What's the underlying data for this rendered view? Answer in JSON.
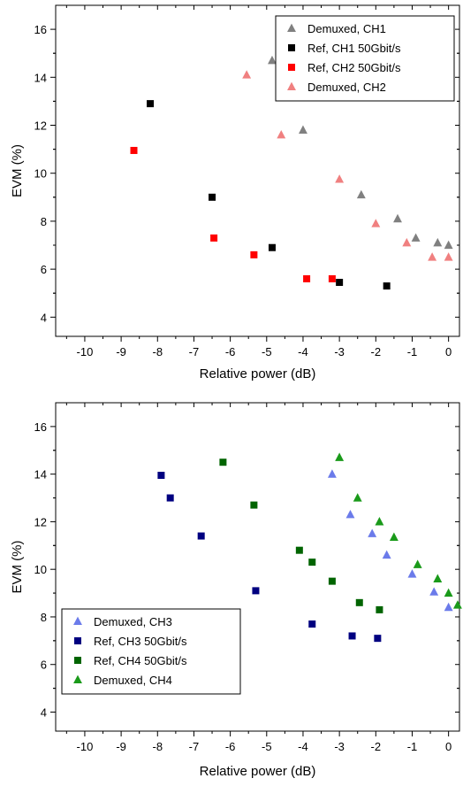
{
  "chart_data": [
    {
      "type": "scatter",
      "xlabel": "Relative power (dB)",
      "ylabel": "EVM (%)",
      "xlim": [
        -10.8,
        0.3
      ],
      "ylim": [
        3.2,
        17
      ],
      "xticks": [
        "-10",
        "-9",
        "-8",
        "-7",
        "-6",
        "-5",
        "-4",
        "-3",
        "-2",
        "-1",
        "0"
      ],
      "yticks": [
        "4",
        "6",
        "8",
        "10",
        "12",
        "14",
        "16"
      ],
      "legend_position": "top-right",
      "series": [
        {
          "name": "Demuxed, CH1",
          "marker": "triangle",
          "color": "#808080",
          "points": [
            [
              -4.85,
              14.7
            ],
            [
              -4.0,
              11.8
            ],
            [
              -2.4,
              9.1
            ],
            [
              -1.4,
              8.1
            ],
            [
              -0.9,
              7.3
            ],
            [
              -0.3,
              7.1
            ],
            [
              0.0,
              7.0
            ]
          ]
        },
        {
          "name": "Ref, CH1 50Gbit/s",
          "marker": "square",
          "color": "#000000",
          "points": [
            [
              -8.2,
              12.9
            ],
            [
              -6.5,
              9.0
            ],
            [
              -4.85,
              6.9
            ],
            [
              -3.0,
              5.45
            ],
            [
              -1.7,
              5.3
            ]
          ]
        },
        {
          "name": "Ref, CH2 50Gbit/s",
          "marker": "square",
          "color": "#ff0000",
          "points": [
            [
              -8.65,
              10.95
            ],
            [
              -6.45,
              7.3
            ],
            [
              -5.35,
              6.6
            ],
            [
              -3.9,
              5.6
            ],
            [
              -3.2,
              5.6
            ]
          ]
        },
        {
          "name": "Demuxed, CH2",
          "marker": "triangle",
          "color": "#f08080",
          "points": [
            [
              -5.55,
              14.1
            ],
            [
              -4.6,
              11.6
            ],
            [
              -3.0,
              9.75
            ],
            [
              -2.0,
              7.9
            ],
            [
              -1.15,
              7.1
            ],
            [
              -0.45,
              6.5
            ],
            [
              0.0,
              6.5
            ]
          ]
        }
      ]
    },
    {
      "type": "scatter",
      "xlabel": "Relative power (dB)",
      "ylabel": "EVM (%)",
      "xlim": [
        -10.8,
        0.3
      ],
      "ylim": [
        3.2,
        17
      ],
      "xticks": [
        "-10",
        "-9",
        "-8",
        "-7",
        "-6",
        "-5",
        "-4",
        "-3",
        "-2",
        "-1",
        "0"
      ],
      "yticks": [
        "4",
        "6",
        "8",
        "10",
        "12",
        "14",
        "16"
      ],
      "legend_position": "bottom-left",
      "series": [
        {
          "name": "Demuxed, CH3",
          "marker": "triangle",
          "color": "#6b7bea",
          "points": [
            [
              -3.2,
              14.0
            ],
            [
              -2.7,
              12.3
            ],
            [
              -2.1,
              11.5
            ],
            [
              -1.7,
              10.6
            ],
            [
              -1.0,
              9.8
            ],
            [
              -0.4,
              9.05
            ],
            [
              0.0,
              8.4
            ]
          ]
        },
        {
          "name": "Ref, CH3 50Gbit/s",
          "marker": "square",
          "color": "#000080",
          "points": [
            [
              -7.9,
              13.95
            ],
            [
              -7.65,
              13.0
            ],
            [
              -6.8,
              11.4
            ],
            [
              -5.3,
              9.1
            ],
            [
              -3.75,
              7.7
            ],
            [
              -2.65,
              7.2
            ],
            [
              -1.95,
              7.1
            ]
          ]
        },
        {
          "name": "Ref, CH4 50Gbit/s",
          "marker": "square",
          "color": "#006400",
          "points": [
            [
              -6.2,
              14.5
            ],
            [
              -5.35,
              12.7
            ],
            [
              -4.1,
              10.8
            ],
            [
              -3.75,
              10.3
            ],
            [
              -3.2,
              9.5
            ],
            [
              -2.45,
              8.6
            ],
            [
              -1.9,
              8.3
            ]
          ]
        },
        {
          "name": "Demuxed, CH4",
          "marker": "triangle",
          "color": "#1a9a1a",
          "points": [
            [
              -3.0,
              14.7
            ],
            [
              -2.5,
              13.0
            ],
            [
              -1.9,
              12.0
            ],
            [
              -1.5,
              11.35
            ],
            [
              -0.85,
              10.2
            ],
            [
              -0.3,
              9.6
            ],
            [
              0.0,
              9.0
            ],
            [
              0.25,
              8.5
            ]
          ]
        }
      ]
    }
  ]
}
